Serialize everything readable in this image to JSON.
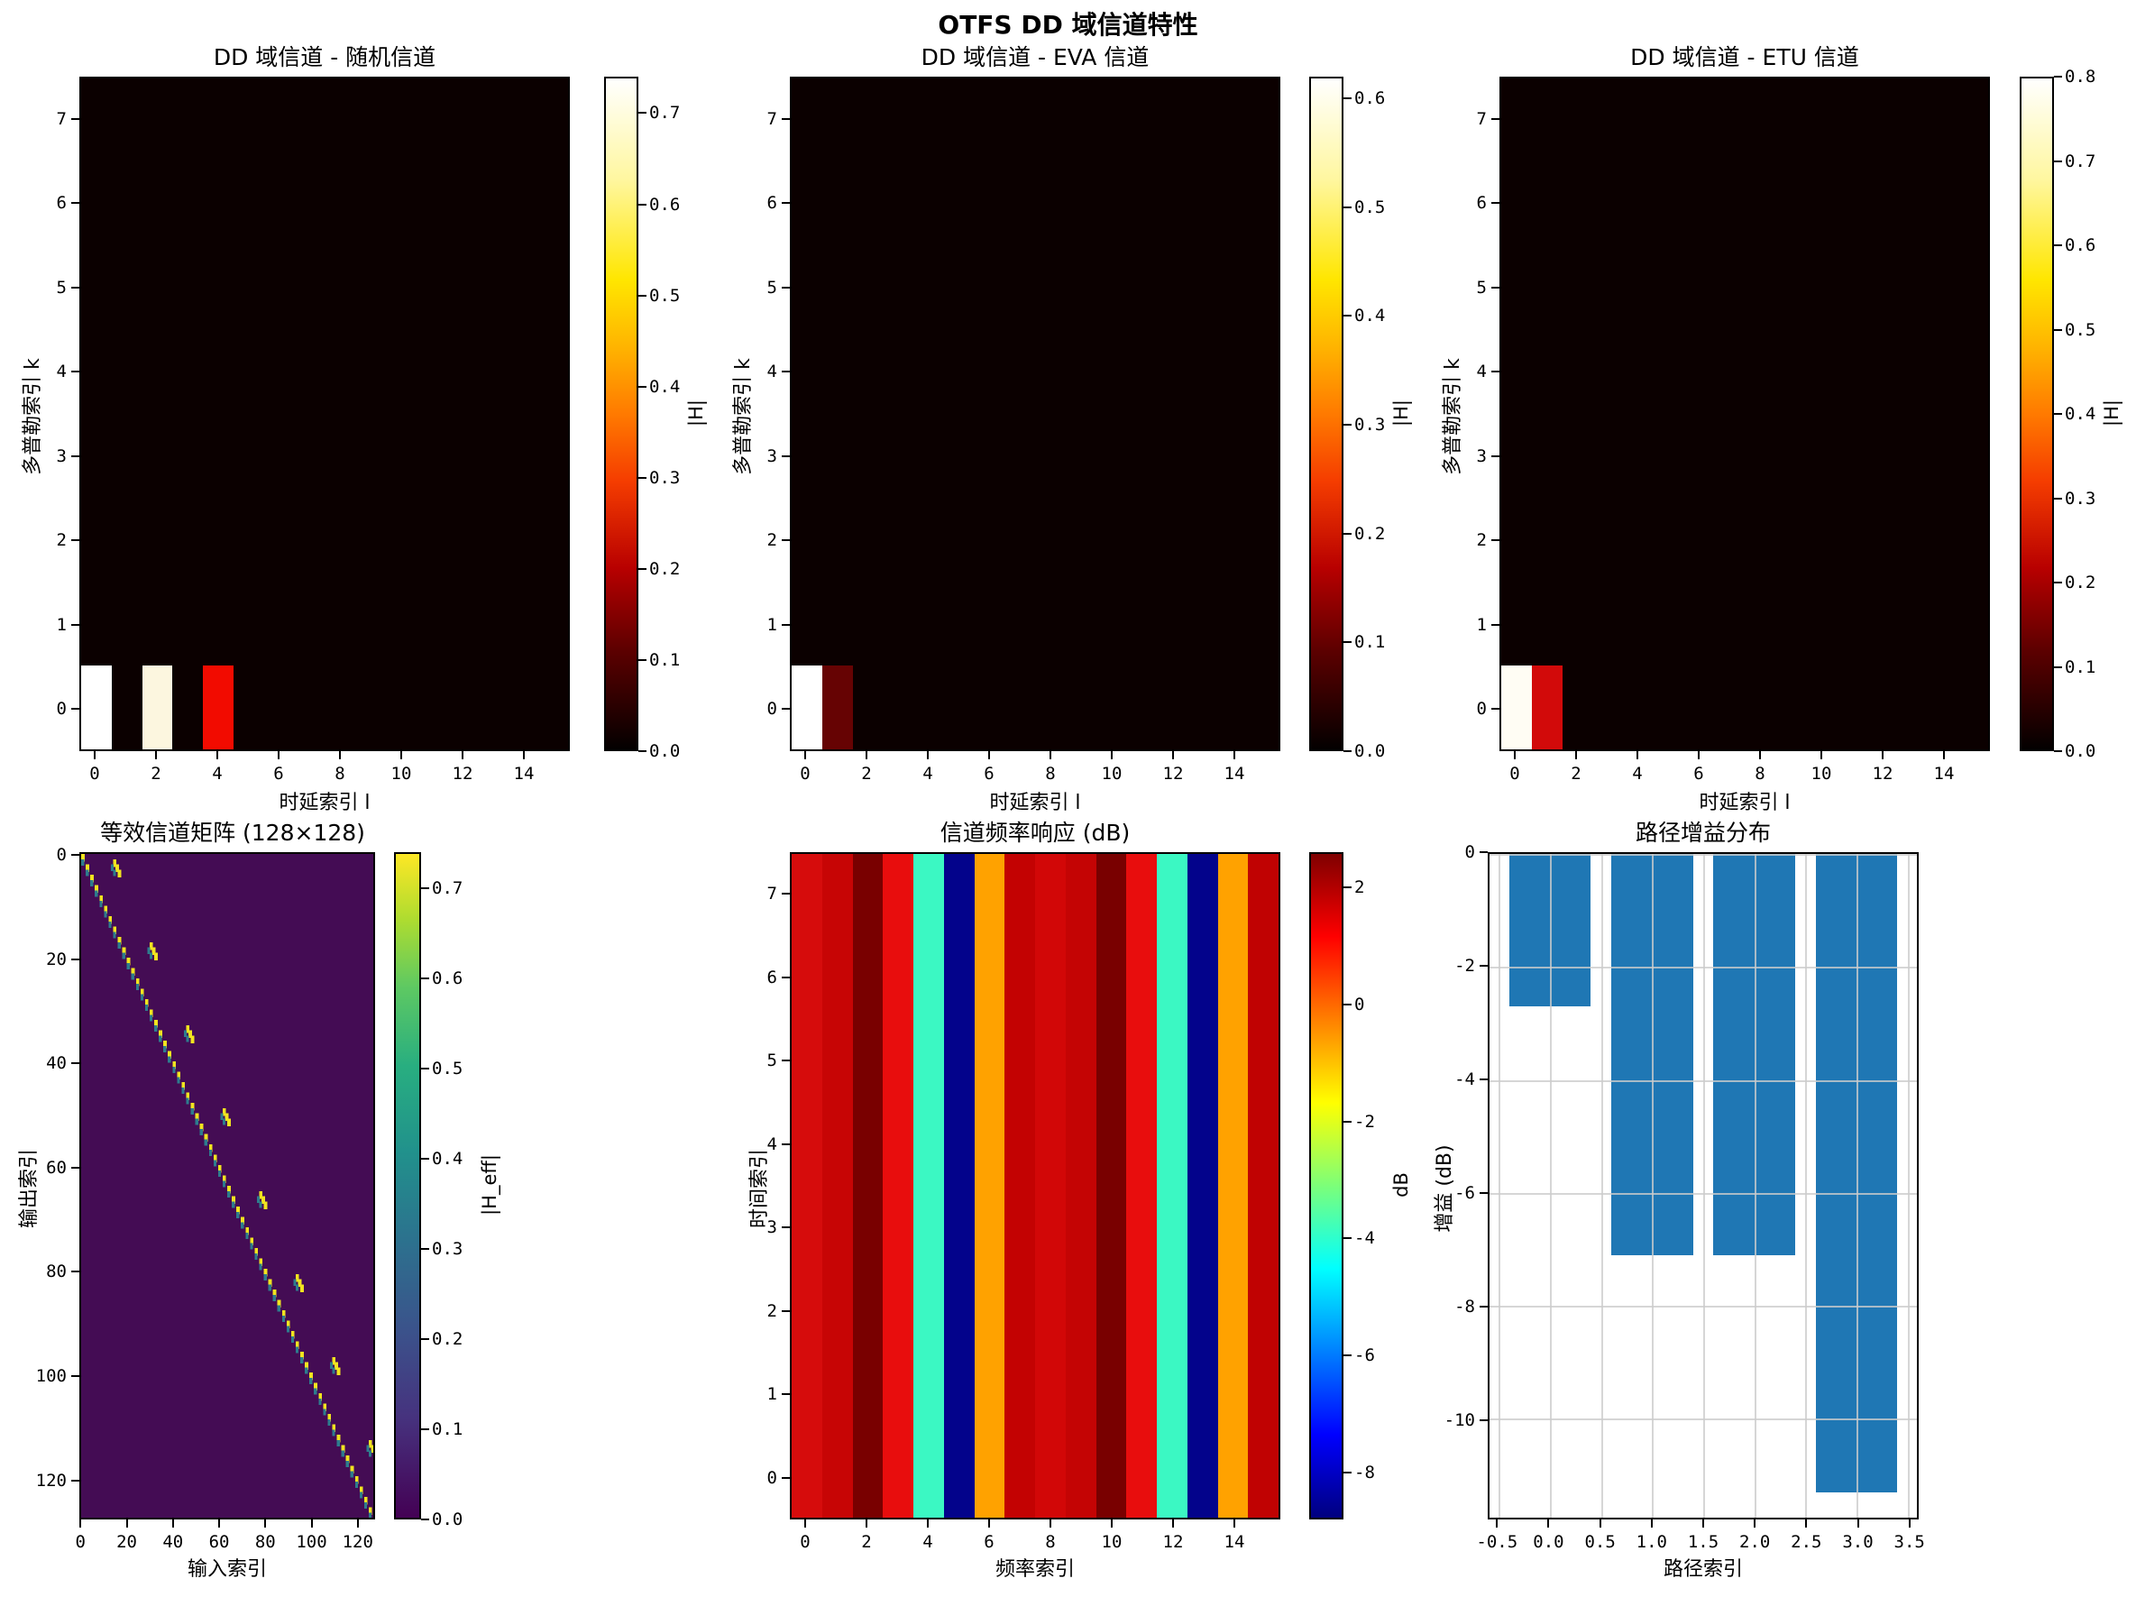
{
  "figure": {
    "suptitle": "OTFS DD 域信道特性"
  },
  "chart_data": [
    {
      "id": "dd-random",
      "type": "heatmap",
      "title": "DD 域信道 - 随机信道",
      "xlabel": "时延索引 l",
      "ylabel": "多普勒索引 k",
      "grid": {
        "cols": 16,
        "rows": 8
      },
      "xticks": [
        0,
        2,
        4,
        6,
        8,
        10,
        12,
        14
      ],
      "yticks": [
        0,
        1,
        2,
        3,
        4,
        5,
        6,
        7
      ],
      "bg_color": "#0b0000",
      "cells": [
        {
          "l": 0,
          "k": 0,
          "value": 0.74,
          "color": "#ffffff"
        },
        {
          "l": 2,
          "k": 0,
          "value": 0.65,
          "color": "#fcf6df"
        },
        {
          "l": 4,
          "k": 0,
          "value": 0.26,
          "color": "#f20b00"
        }
      ],
      "colorbar": {
        "label": "|H|",
        "cmap": "hot",
        "vmin": 0.0,
        "vmax": 0.74,
        "ticks": [
          0.0,
          0.1,
          0.2,
          0.3,
          0.4,
          0.5,
          0.6,
          0.7
        ],
        "tick_labels": [
          "0.0",
          "0.1",
          "0.2",
          "0.3",
          "0.4",
          "0.5",
          "0.6",
          "0.7"
        ]
      }
    },
    {
      "id": "dd-eva",
      "type": "heatmap",
      "title": "DD 域信道 - EVA 信道",
      "xlabel": "时延索引 l",
      "ylabel": "多普勒索引 k",
      "grid": {
        "cols": 16,
        "rows": 8
      },
      "xticks": [
        0,
        2,
        4,
        6,
        8,
        10,
        12,
        14
      ],
      "yticks": [
        0,
        1,
        2,
        3,
        4,
        5,
        6,
        7
      ],
      "bg_color": "#0b0000",
      "cells": [
        {
          "l": 0,
          "k": 0,
          "value": 0.62,
          "color": "#ffffff"
        },
        {
          "l": 1,
          "k": 0,
          "value": 0.09,
          "color": "#660303"
        }
      ],
      "colorbar": {
        "label": "|H|",
        "cmap": "hot",
        "vmin": 0.0,
        "vmax": 0.62,
        "ticks": [
          0.0,
          0.1,
          0.2,
          0.3,
          0.4,
          0.5,
          0.6
        ],
        "tick_labels": [
          "0.0",
          "0.1",
          "0.2",
          "0.3",
          "0.4",
          "0.5",
          "0.6"
        ]
      }
    },
    {
      "id": "dd-etu",
      "type": "heatmap",
      "title": "DD 域信道 - ETU 信道",
      "xlabel": "时延索引 l",
      "ylabel": "多普勒索引 k",
      "grid": {
        "cols": 16,
        "rows": 8
      },
      "xticks": [
        0,
        2,
        4,
        6,
        8,
        10,
        12,
        14
      ],
      "yticks": [
        0,
        1,
        2,
        3,
        4,
        5,
        6,
        7
      ],
      "bg_color": "#0b0000",
      "cells": [
        {
          "l": 0,
          "k": 0,
          "value": 0.8,
          "color": "#fffdf4"
        },
        {
          "l": 1,
          "k": 0,
          "value": 0.28,
          "color": "#d20a0a"
        }
      ],
      "colorbar": {
        "label": "|H|",
        "cmap": "hot",
        "vmin": 0.0,
        "vmax": 0.8,
        "ticks": [
          0.0,
          0.1,
          0.2,
          0.3,
          0.4,
          0.5,
          0.6,
          0.7,
          0.8
        ],
        "tick_labels": [
          "0.0",
          "0.1",
          "0.2",
          "0.3",
          "0.4",
          "0.5",
          "0.6",
          "0.7",
          "0.8"
        ]
      }
    },
    {
      "id": "h-eff-matrix",
      "type": "matrix-heatmap",
      "title": "等效信道矩阵 (128×128)",
      "xlabel": "输入索引",
      "ylabel": "输出索引",
      "n": 128,
      "xticks": [
        0,
        20,
        40,
        60,
        80,
        100,
        120
      ],
      "yticks": [
        0,
        20,
        40,
        60,
        80,
        100,
        120
      ],
      "bg_color": "#440c54",
      "diag_color": "#f2e41f",
      "sub_diag_color": "#2d7c8e",
      "off_blocks": {
        "count": 8,
        "period": 16,
        "col_offset": 13,
        "length": 3
      },
      "colorbar": {
        "label": "|H_eff|",
        "cmap": "viridis",
        "vmin": 0.0,
        "vmax": 0.74,
        "ticks": [
          0.0,
          0.1,
          0.2,
          0.3,
          0.4,
          0.5,
          0.6,
          0.7
        ],
        "tick_labels": [
          "0.0",
          "0.1",
          "0.2",
          "0.3",
          "0.4",
          "0.5",
          "0.6",
          "0.7"
        ]
      }
    },
    {
      "id": "freq-response",
      "type": "column-heatmap",
      "title": "信道频率响应 (dB)",
      "xlabel": "频率索引",
      "ylabel": "时间索引",
      "grid": {
        "cols": 16,
        "rows": 8
      },
      "xticks": [
        0,
        2,
        4,
        6,
        8,
        10,
        12,
        14
      ],
      "yticks": [
        0,
        1,
        2,
        3,
        4,
        5,
        6,
        7
      ],
      "columns": [
        {
          "x": 0,
          "db": 1.5,
          "color": "#d60c0c"
        },
        {
          "x": 1,
          "db": 1.2,
          "color": "#c70505"
        },
        {
          "x": 2,
          "db": 2.6,
          "color": "#790000"
        },
        {
          "x": 3,
          "db": 1.8,
          "color": "#e80d0d"
        },
        {
          "x": 4,
          "db": -4.4,
          "color": "#3bf8c3"
        },
        {
          "x": 5,
          "db": -8.6,
          "color": "#03038b"
        },
        {
          "x": 6,
          "db": -0.7,
          "color": "#ffa200"
        },
        {
          "x": 7,
          "db": 1.1,
          "color": "#c30202"
        },
        {
          "x": 8,
          "db": 1.4,
          "color": "#d20707"
        },
        {
          "x": 9,
          "db": 1.2,
          "color": "#c40404"
        },
        {
          "x": 10,
          "db": 2.6,
          "color": "#790000"
        },
        {
          "x": 11,
          "db": 1.8,
          "color": "#e80d0d"
        },
        {
          "x": 12,
          "db": -4.4,
          "color": "#3bf8c3"
        },
        {
          "x": 13,
          "db": -8.6,
          "color": "#03038b"
        },
        {
          "x": 14,
          "db": -0.7,
          "color": "#ffa200"
        },
        {
          "x": 15,
          "db": 1.0,
          "color": "#c00202"
        }
      ],
      "colorbar": {
        "label": "dB",
        "cmap": "jet",
        "vmin": -8.8,
        "vmax": 2.6,
        "ticks": [
          2,
          0,
          -2,
          -4,
          -6,
          -8
        ],
        "tick_labels": [
          "2",
          "0",
          "-2",
          "-4",
          "-6",
          "-8"
        ]
      }
    },
    {
      "id": "path-gain",
      "type": "bar",
      "title": "路径增益分布",
      "xlabel": "路径索引",
      "ylabel": "增益 (dB)",
      "x": [
        0,
        1,
        2,
        3
      ],
      "values": [
        -2.7,
        -7.1,
        -7.1,
        -11.3
      ],
      "bar_color": "#1f77b4",
      "bar_width": 0.8,
      "xlim": [
        -0.59,
        3.59
      ],
      "ylim": [
        -11.75,
        0
      ],
      "xticks": [
        -0.5,
        0.0,
        0.5,
        1.0,
        1.5,
        2.0,
        2.5,
        3.0,
        3.5
      ],
      "xtick_labels": [
        "-0.5",
        "0.0",
        "0.5",
        "1.0",
        "1.5",
        "2.0",
        "2.5",
        "3.0",
        "3.5"
      ],
      "yticks": [
        0,
        -2,
        -4,
        -6,
        -8,
        -10
      ],
      "ytick_labels": [
        "0",
        "-2",
        "-4",
        "-6",
        "-8",
        "-10"
      ],
      "grid_on": true,
      "grid_color": "#cccccc"
    }
  ]
}
